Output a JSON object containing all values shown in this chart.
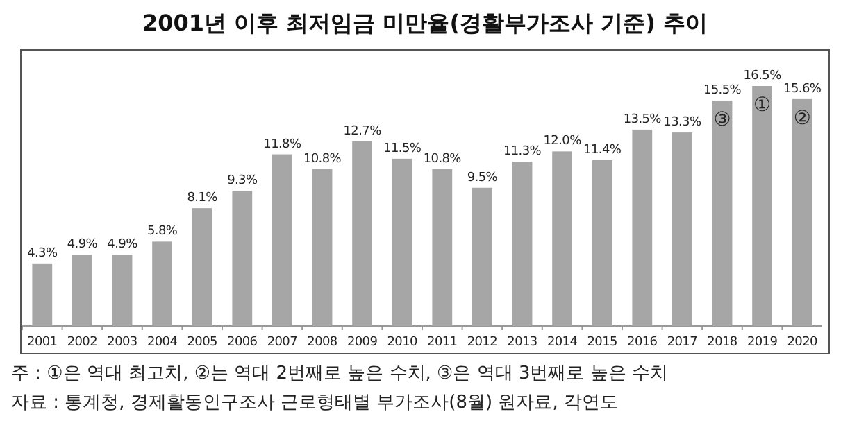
{
  "chart_data": {
    "type": "bar",
    "title": "2001년 이후 최저임금 미만율(경활부가조사 기준) 추이",
    "categories": [
      "2001",
      "2002",
      "2003",
      "2004",
      "2005",
      "2006",
      "2007",
      "2008",
      "2009",
      "2010",
      "2011",
      "2012",
      "2013",
      "2014",
      "2015",
      "2016",
      "2017",
      "2018",
      "2019",
      "2020"
    ],
    "values": [
      4.3,
      4.9,
      4.9,
      5.8,
      8.1,
      9.3,
      11.8,
      10.8,
      12.7,
      11.5,
      10.8,
      9.5,
      11.3,
      12.0,
      11.4,
      13.5,
      13.3,
      15.5,
      16.5,
      15.6
    ],
    "value_labels": [
      "4.3%",
      "4.9%",
      "4.9%",
      "5.8%",
      "8.1%",
      "9.3%",
      "11.8%",
      "10.8%",
      "12.7%",
      "11.5%",
      "10.8%",
      "9.5%",
      "11.3%",
      "12.0%",
      "11.4%",
      "13.5%",
      "13.3%",
      "15.5%",
      "16.5%",
      "15.6%"
    ],
    "color": "#a6a6a6",
    "annotations": [
      {
        "text": "③",
        "x": "2018",
        "y": 15.5
      },
      {
        "text": "①",
        "x": "2019",
        "y": 16.5
      },
      {
        "text": "②",
        "x": "2020",
        "y": 15.6
      },
      "주 : ①은 역대 최고치, ②는 역대 2번째로 높은 수치, ③은 역대 3번째로 높은 수치",
      "자료 : 통계청, 경제활동인구조사 근로형태별 부가조사(8월) 원자료, 각연도"
    ]
  }
}
